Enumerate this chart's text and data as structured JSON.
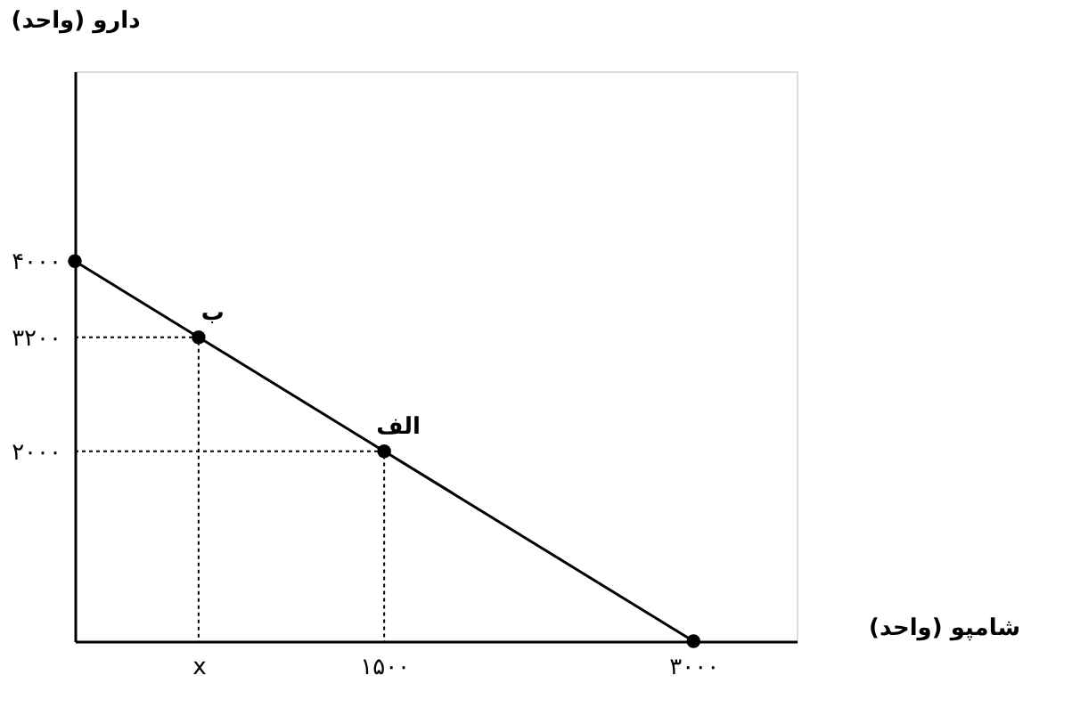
{
  "chart_data": {
    "type": "line",
    "xlabel": "شامپو (واحد)",
    "ylabel": "دارو (واحد)",
    "xlim": [
      0,
      3500
    ],
    "ylim": [
      0,
      6000
    ],
    "xticks": [
      {
        "value": 600,
        "label": "x"
      },
      {
        "value": 1500,
        "label": "۱۵۰۰"
      },
      {
        "value": 3000,
        "label": "۳۰۰۰"
      }
    ],
    "yticks": [
      {
        "value": 2000,
        "label": "۲۰۰۰"
      },
      {
        "value": 3200,
        "label": "۳۲۰۰"
      },
      {
        "value": 4000,
        "label": "۴۰۰۰"
      }
    ],
    "grid": false,
    "series": [
      {
        "color": "#000000",
        "x": [
          0,
          600,
          1500,
          3000
        ],
        "values": [
          4000,
          3200,
          2000,
          0
        ],
        "marker": "circle",
        "line_style": "solid"
      },
      {
        "color": "#000000",
        "x": [
          0,
          600,
          600
        ],
        "values": [
          3200,
          3200,
          0
        ],
        "marker": "none",
        "line_style": "dotted"
      },
      {
        "color": "#000000",
        "x": [
          0,
          1500,
          1500
        ],
        "values": [
          2000,
          2000,
          0
        ],
        "marker": "none",
        "line_style": "dotted"
      }
    ],
    "annotations": [
      {
        "text": "ب",
        "x": 600,
        "y": 3200
      },
      {
        "text": "الف",
        "x": 1500,
        "y": 2000
      }
    ]
  }
}
